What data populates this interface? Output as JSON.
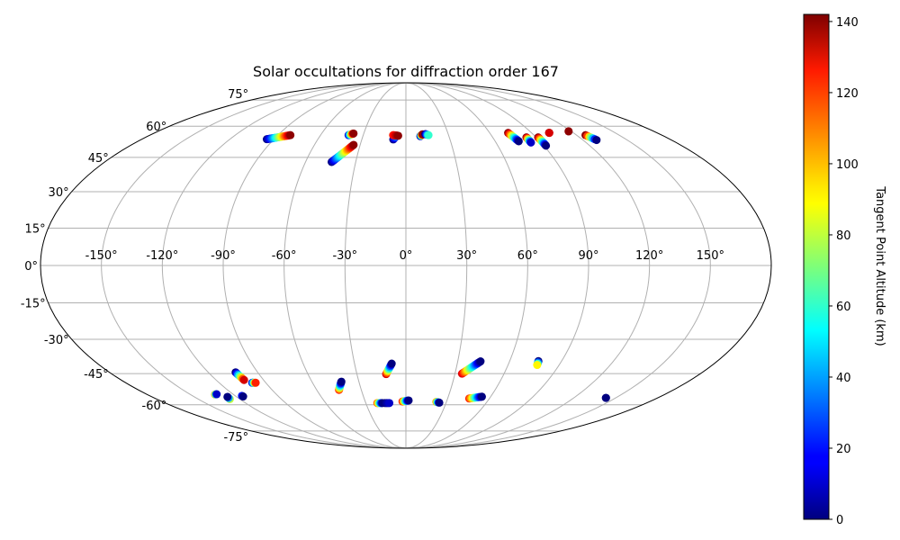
{
  "chart_data": {
    "type": "scatter",
    "projection": "mollweide",
    "title": "Solar occultations for diffraction order 167",
    "x_ticks": [
      "-150°",
      "-120°",
      "-90°",
      "-60°",
      "-30°",
      "0°",
      "30°",
      "60°",
      "90°",
      "120°",
      "150°"
    ],
    "x_tick_values": [
      -150,
      -120,
      -90,
      -60,
      -30,
      0,
      30,
      60,
      90,
      120,
      150
    ],
    "y_ticks": [
      "-75°",
      "-60°",
      "-45°",
      "-30°",
      "-15°",
      "0°",
      "15°",
      "30°",
      "45°",
      "60°",
      "75°"
    ],
    "y_tick_values": [
      -75,
      -60,
      -45,
      -30,
      -15,
      0,
      15,
      30,
      45,
      60,
      75
    ],
    "colorbar": {
      "label": "Tangent Point Altitude (km)",
      "range": [
        0,
        142
      ],
      "ticks": [
        "0",
        "20",
        "40",
        "60",
        "80",
        "100",
        "120",
        "140"
      ],
      "tick_values": [
        0,
        20,
        40,
        60,
        80,
        100,
        120,
        140
      ],
      "colormap": "jet"
    },
    "grid": true,
    "tracks": [
      {
        "start": [
          -94.8,
          53.5
        ],
        "end": [
          -81.2,
          55.5
        ],
        "alt": [
          0,
          140
        ],
        "n": 22
      },
      {
        "start": [
          -40.3,
          55.5
        ],
        "end": [
          -37.3,
          56.3
        ],
        "alt": [
          10,
          140
        ],
        "n": 10
      },
      {
        "start": [
          -44.4,
          42.9
        ],
        "end": [
          -34.3,
          50.8
        ],
        "alt": [
          0,
          140
        ],
        "n": 26
      },
      {
        "start": [
          -8.6,
          53.4
        ],
        "end": [
          -6.7,
          55.2
        ],
        "alt": [
          0,
          40
        ],
        "n": 6
      },
      {
        "start": [
          -9.0,
          55.5
        ],
        "end": [
          -5.4,
          55.2
        ],
        "alt": [
          120,
          140
        ],
        "n": 6
      },
      {
        "start": [
          10.1,
          55.0
        ],
        "end": [
          11.8,
          55.9
        ],
        "alt": [
          0,
          140
        ],
        "n": 8
      },
      {
        "start": [
          13.8,
          56.0
        ],
        "end": [
          15.9,
          55.5
        ],
        "alt": [
          0,
          60
        ],
        "n": 5
      },
      {
        "start": [
          73.2,
          56.6
        ],
        "end": [
          75.8,
          52.5
        ],
        "alt": [
          140,
          0
        ],
        "n": 12
      },
      {
        "start": [
          83.3,
          54.4
        ],
        "end": [
          83.3,
          51.9
        ],
        "alt": [
          140,
          10
        ],
        "n": 8
      },
      {
        "start": [
          91.4,
          54.4
        ],
        "end": [
          91.4,
          50.4
        ],
        "alt": [
          140,
          0
        ],
        "n": 12
      },
      {
        "start": [
          102.7,
          56.7
        ],
        "end": [
          102.7,
          56.6
        ],
        "alt": [
          140,
          130
        ],
        "n": 3
      },
      {
        "start": [
          118.1,
          57.4
        ],
        "end": [
          118.1,
          57.4
        ],
        "alt": [
          140,
          140
        ],
        "n": 2
      },
      {
        "start": [
          126.3,
          55.5
        ],
        "end": [
          129.2,
          53.1
        ],
        "alt": [
          140,
          0
        ],
        "n": 7
      },
      {
        "start": [
          -132.7,
          -54.8
        ],
        "end": [
          -131.4,
          -54.7
        ],
        "alt": [
          100,
          10
        ],
        "n": 3
      },
      {
        "start": [
          -127.1,
          -57.1
        ],
        "end": [
          -126.5,
          -56.0
        ],
        "alt": [
          80,
          0
        ],
        "n": 3
      },
      {
        "start": [
          -115.3,
          -55.5
        ],
        "end": [
          -115.0,
          -55.8
        ],
        "alt": [
          20,
          0
        ],
        "n": 2
      },
      {
        "start": [
          -103.4,
          -44.4
        ],
        "end": [
          -102.3,
          -47.9
        ],
        "alt": [
          0,
          130
        ],
        "n": 8
      },
      {
        "start": [
          -98.7,
          -49.2
        ],
        "end": [
          -96.5,
          -49.2
        ],
        "alt": [
          10,
          120
        ],
        "n": 6
      },
      {
        "start": [
          -45.0,
          -52.6
        ],
        "end": [
          -41.2,
          -48.7
        ],
        "alt": [
          120,
          0
        ],
        "n": 10
      },
      {
        "start": [
          -21.4,
          -59.1
        ],
        "end": [
          -17.6,
          -59.1
        ],
        "alt": [
          110,
          0
        ],
        "n": 6
      },
      {
        "start": [
          -15.7,
          -59.1
        ],
        "end": [
          -12.4,
          -59.1
        ],
        "alt": [
          0,
          10
        ],
        "n": 4
      },
      {
        "start": [
          -12.1,
          -45.2
        ],
        "end": [
          -8.3,
          -40.5
        ],
        "alt": [
          130,
          0
        ],
        "n": 10
      },
      {
        "start": [
          -2.5,
          -58.3
        ],
        "end": [
          2.0,
          -57.8
        ],
        "alt": [
          120,
          0
        ],
        "n": 8
      },
      {
        "start": [
          22.5,
          -58.5
        ],
        "end": [
          24.9,
          -58.9
        ],
        "alt": [
          100,
          0
        ],
        "n": 5
      },
      {
        "start": [
          34.3,
          -45.0
        ],
        "end": [
          43.2,
          -39.5
        ],
        "alt": [
          130,
          0
        ],
        "n": 22
      },
      {
        "start": [
          45.5,
          -56.8
        ],
        "end": [
          53.8,
          -55.9
        ],
        "alt": [
          120,
          0
        ],
        "n": 12
      },
      {
        "start": [
          76.6,
          -39.4
        ],
        "end": [
          77.1,
          -41.1
        ],
        "alt": [
          0,
          90
        ],
        "n": 4
      },
      {
        "start": [
          143.0,
          -56.5
        ],
        "end": [
          143.0,
          -56.5
        ],
        "alt": [
          0,
          0
        ],
        "n": 2
      }
    ]
  }
}
